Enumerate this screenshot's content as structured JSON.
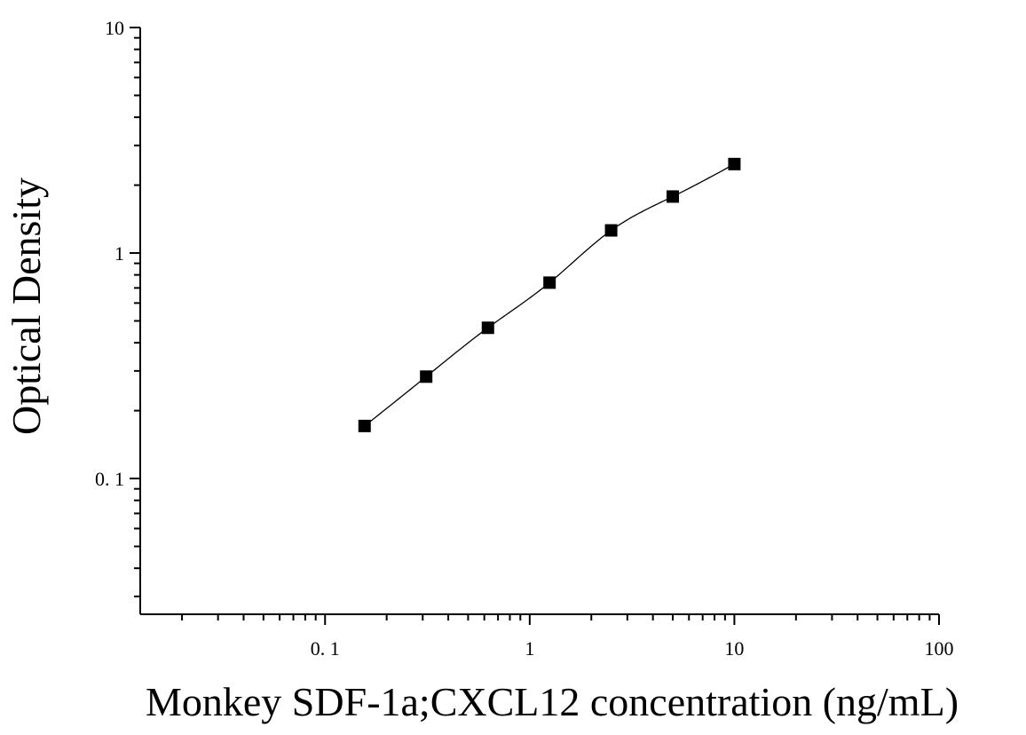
{
  "chart_data": {
    "type": "scatter",
    "title": "",
    "xlabel": "Monkey SDF-1a;CXCL12 concentration (ng/mL)",
    "ylabel": "Optical Density",
    "x_scale": "log",
    "y_scale": "log",
    "xlim": [
      0.0125,
      100
    ],
    "ylim": [
      0.025,
      10
    ],
    "x_ticks": [
      {
        "value": 0.1,
        "label": "0. 1"
      },
      {
        "value": 1,
        "label": "1"
      },
      {
        "value": 10,
        "label": "10"
      },
      {
        "value": 100,
        "label": "100"
      }
    ],
    "y_ticks": [
      {
        "value": 0.1,
        "label": "0. 1"
      },
      {
        "value": 1,
        "label": "1"
      },
      {
        "value": 10,
        "label": "10"
      }
    ],
    "grid": false,
    "legend": "none",
    "series": [
      {
        "points": [
          {
            "x": 0.156,
            "y": 0.171
          },
          {
            "x": 0.312,
            "y": 0.283
          },
          {
            "x": 0.625,
            "y": 0.466
          },
          {
            "x": 1.25,
            "y": 0.739
          },
          {
            "x": 2.5,
            "y": 1.26
          },
          {
            "x": 5,
            "y": 1.78
          },
          {
            "x": 10,
            "y": 2.48
          }
        ],
        "marker": "square",
        "color": "#000000",
        "fit_curve": true
      }
    ]
  }
}
